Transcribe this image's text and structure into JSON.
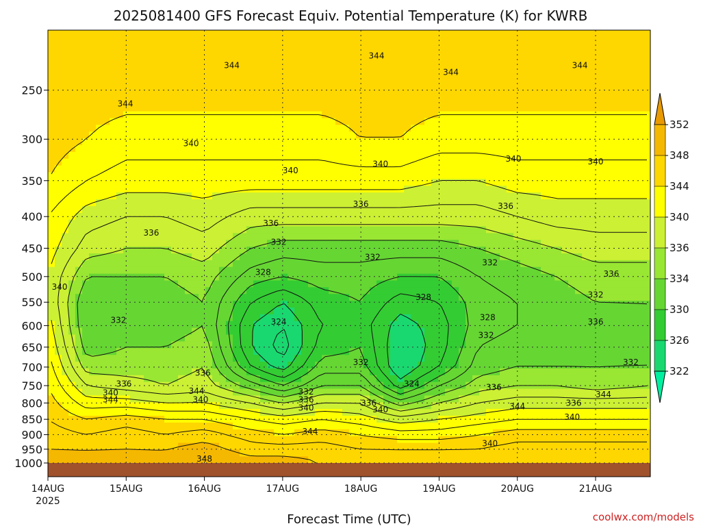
{
  "chart_data": {
    "type": "heatmap",
    "title": "2025081400 GFS Forecast Equiv. Potential Temperature (K) for KWRB",
    "xlabel": "Forecast Time (UTC)",
    "ylabel": "",
    "credit": "coolwx.com/models",
    "x_ticks": [
      "14AUG",
      "15AUG",
      "16AUG",
      "17AUG",
      "18AUG",
      "19AUG",
      "20AUG",
      "21AUG"
    ],
    "x_year": "2025",
    "x_range": [
      0,
      7.7
    ],
    "y_ticks": [
      "250",
      "300",
      "350",
      "400",
      "450",
      "500",
      "550",
      "600",
      "650",
      "700",
      "750",
      "800",
      "850",
      "900",
      "950",
      "1000"
    ],
    "y_range_hpa": [
      1000,
      200
    ],
    "y_scale": "log-pressure",
    "grid": true,
    "colorbar": {
      "levels": [
        322,
        326,
        330,
        334,
        336,
        340,
        344,
        348,
        352
      ],
      "labels": [
        "352",
        "348",
        "344",
        "340",
        "336",
        "334",
        "330",
        "326",
        "322"
      ],
      "colors": [
        "#00f0a0",
        "#1ad870",
        "#33cc33",
        "#66d633",
        "#99e633",
        "#ccf033",
        "#ffff00",
        "#ffd700",
        "#f5b800",
        "#e89a00"
      ]
    },
    "profiles": [
      {
        "t": 0.0,
        "theta": [
          345,
          345,
          344,
          342,
          341,
          340,
          340,
          341,
          342,
          343,
          344,
          345,
          346,
          347,
          348,
          349
        ]
      },
      {
        "t": 0.5,
        "theta": [
          345,
          344,
          342,
          339,
          337,
          334,
          332,
          332,
          333,
          335,
          338,
          341,
          344,
          346,
          348,
          349
        ]
      },
      {
        "t": 1.0,
        "theta": [
          345,
          343,
          341,
          338,
          336,
          334,
          333,
          333,
          334,
          335,
          337,
          341,
          345,
          347,
          348,
          349
        ]
      },
      {
        "t": 1.5,
        "theta": [
          345,
          343,
          341,
          338,
          336,
          334,
          333,
          333,
          334,
          335,
          336,
          340,
          344,
          346,
          348,
          349
        ]
      },
      {
        "t": 2.0,
        "theta": [
          345,
          343,
          341,
          339,
          337,
          335,
          334,
          334,
          335,
          336,
          337,
          340,
          344,
          347,
          349,
          350
        ]
      },
      {
        "t": 2.6,
        "theta": [
          345,
          343,
          341,
          337,
          334,
          331,
          328,
          326,
          326,
          328,
          333,
          338,
          342,
          345,
          347,
          349
        ]
      },
      {
        "t": 3.0,
        "theta": [
          345,
          343,
          341,
          337,
          333,
          330,
          326,
          324,
          323,
          325,
          330,
          336,
          341,
          344,
          347,
          349
        ]
      },
      {
        "t": 3.5,
        "theta": [
          345,
          343,
          341,
          337,
          333,
          331,
          329,
          328,
          329,
          331,
          334,
          338,
          342,
          345,
          347,
          348
        ]
      },
      {
        "t": 4.0,
        "theta": [
          345,
          344,
          341,
          337,
          333,
          331,
          330,
          329,
          330,
          331,
          334,
          338,
          341,
          344,
          346,
          348
        ]
      },
      {
        "t": 4.5,
        "theta": [
          345,
          344,
          341,
          337,
          333,
          330,
          327,
          325,
          324,
          324,
          327,
          333,
          339,
          343,
          346,
          348
        ]
      },
      {
        "t": 5.0,
        "theta": [
          345,
          343,
          340,
          337,
          333,
          330,
          328,
          327,
          327,
          328,
          332,
          336,
          340,
          343,
          346,
          348
        ]
      },
      {
        "t": 5.5,
        "theta": [
          345,
          343,
          340,
          337,
          334,
          332,
          331,
          331,
          332,
          333,
          335,
          338,
          341,
          344,
          346,
          348
        ]
      },
      {
        "t": 6.0,
        "theta": [
          345,
          343,
          341,
          338,
          335,
          333,
          332,
          332,
          333,
          334,
          336,
          339,
          342,
          345,
          347,
          348
        ]
      },
      {
        "t": 6.5,
        "theta": [
          345,
          343,
          341,
          339,
          336,
          334,
          333,
          333,
          333,
          334,
          336,
          339,
          342,
          345,
          347,
          348
        ]
      },
      {
        "t": 7.0,
        "theta": [
          345,
          343,
          341,
          339,
          337,
          335,
          334,
          333,
          333,
          334,
          335,
          339,
          342,
          345,
          347,
          348
        ]
      },
      {
        "t": 7.7,
        "theta": [
          345,
          343,
          341,
          339,
          337,
          335,
          334,
          334,
          334,
          334,
          336,
          339,
          342,
          345,
          347,
          348
        ]
      }
    ],
    "contour_labels": [
      {
        "t": 2.35,
        "p": 228,
        "text": "344"
      },
      {
        "t": 4.2,
        "p": 220,
        "text": "344"
      },
      {
        "t": 5.15,
        "p": 234,
        "text": "344"
      },
      {
        "t": 6.8,
        "p": 228,
        "text": "344"
      },
      {
        "t": 0.99,
        "p": 263,
        "text": "344"
      },
      {
        "t": 1.83,
        "p": 305,
        "text": "340"
      },
      {
        "t": 3.1,
        "p": 337,
        "text": "340"
      },
      {
        "t": 4.25,
        "p": 329,
        "text": "340"
      },
      {
        "t": 5.95,
        "p": 323,
        "text": "340"
      },
      {
        "t": 7.0,
        "p": 326,
        "text": "340"
      },
      {
        "t": 1.32,
        "p": 425,
        "text": "336"
      },
      {
        "t": 2.85,
        "p": 410,
        "text": "336"
      },
      {
        "t": 4.0,
        "p": 382,
        "text": "336"
      },
      {
        "t": 5.85,
        "p": 385,
        "text": "336"
      },
      {
        "t": 2.95,
        "p": 440,
        "text": "332"
      },
      {
        "t": 4.15,
        "p": 465,
        "text": "332"
      },
      {
        "t": 5.65,
        "p": 475,
        "text": "332"
      },
      {
        "t": 7.2,
        "p": 495,
        "text": "336"
      },
      {
        "t": 7.0,
        "p": 535,
        "text": "332"
      },
      {
        "t": 2.75,
        "p": 492,
        "text": "328"
      },
      {
        "t": 4.8,
        "p": 540,
        "text": "328"
      },
      {
        "t": 5.62,
        "p": 582,
        "text": "328"
      },
      {
        "t": 5.6,
        "p": 622,
        "text": "332"
      },
      {
        "t": 7.0,
        "p": 592,
        "text": "336"
      },
      {
        "t": 7.45,
        "p": 688,
        "text": "332"
      },
      {
        "t": 0.15,
        "p": 520,
        "text": "340"
      },
      {
        "t": 0.9,
        "p": 588,
        "text": "332"
      },
      {
        "t": 2.95,
        "p": 592,
        "text": "324"
      },
      {
        "t": 1.98,
        "p": 715,
        "text": "336"
      },
      {
        "t": 4.0,
        "p": 688,
        "text": "332"
      },
      {
        "t": 4.65,
        "p": 745,
        "text": "324"
      },
      {
        "t": 0.97,
        "p": 745,
        "text": "336"
      },
      {
        "t": 0.8,
        "p": 770,
        "text": "340"
      },
      {
        "t": 0.8,
        "p": 790,
        "text": "344"
      },
      {
        "t": 1.9,
        "p": 765,
        "text": "344"
      },
      {
        "t": 1.95,
        "p": 790,
        "text": "340"
      },
      {
        "t": 3.3,
        "p": 767,
        "text": "332"
      },
      {
        "t": 3.3,
        "p": 790,
        "text": "336"
      },
      {
        "t": 3.3,
        "p": 815,
        "text": "340"
      },
      {
        "t": 4.1,
        "p": 800,
        "text": "336"
      },
      {
        "t": 4.25,
        "p": 820,
        "text": "340"
      },
      {
        "t": 5.7,
        "p": 755,
        "text": "336"
      },
      {
        "t": 6.0,
        "p": 810,
        "text": "344"
      },
      {
        "t": 6.72,
        "p": 800,
        "text": "336"
      },
      {
        "t": 6.7,
        "p": 843,
        "text": "340"
      },
      {
        "t": 7.1,
        "p": 775,
        "text": "344"
      },
      {
        "t": 3.35,
        "p": 890,
        "text": "344"
      },
      {
        "t": 5.65,
        "p": 930,
        "text": "340"
      },
      {
        "t": 2.0,
        "p": 985,
        "text": "348"
      }
    ]
  }
}
